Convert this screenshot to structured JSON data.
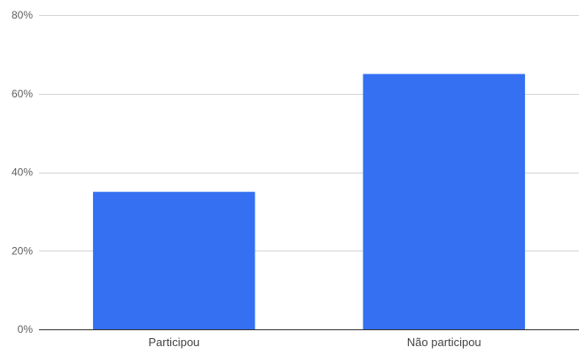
{
  "chart_data": {
    "type": "bar",
    "categories": [
      "Participou",
      "Não participou"
    ],
    "values": [
      35,
      65
    ],
    "value_unit": "%",
    "ylim": [
      0,
      80
    ],
    "yticks": [
      0,
      20,
      40,
      60,
      80
    ],
    "ytick_labels": [
      "0%",
      "20%",
      "40%",
      "60%",
      "80%"
    ],
    "title": "",
    "xlabel": "",
    "ylabel": "",
    "grid": true,
    "legend": "none",
    "colors": {
      "bar": "#3570f2",
      "grid": "#d4d4d4",
      "baseline": "#333333"
    }
  }
}
